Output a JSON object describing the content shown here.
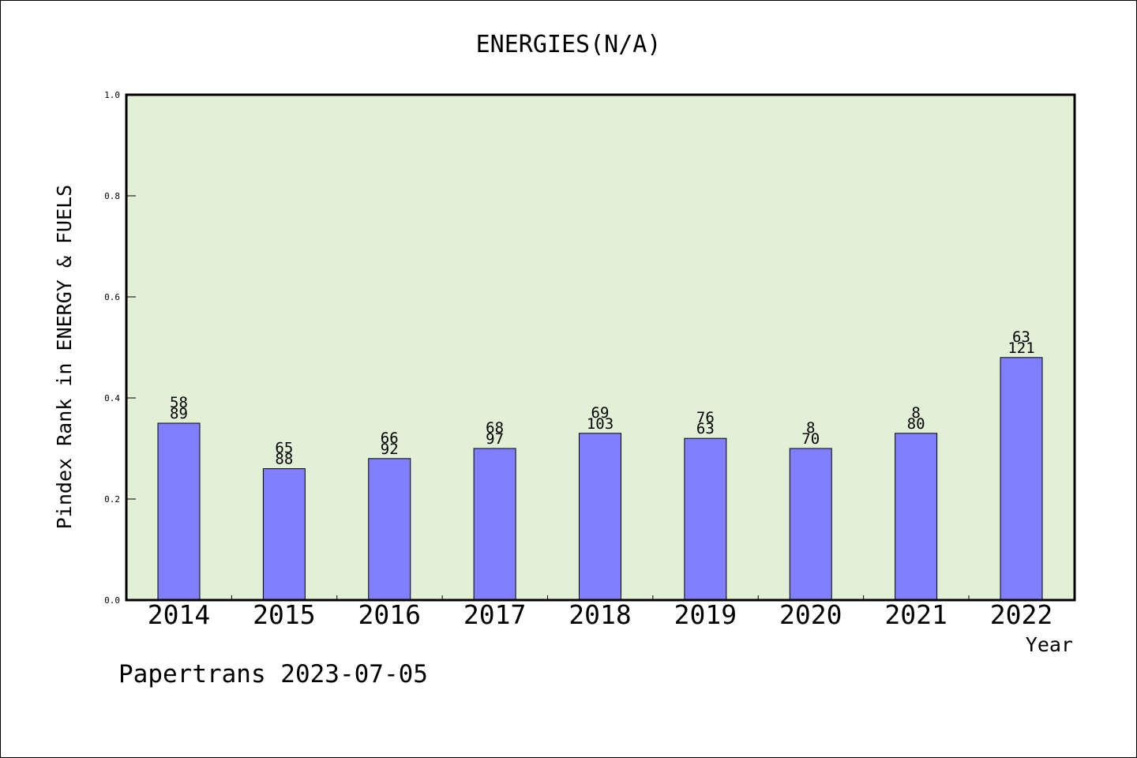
{
  "chart_data": {
    "type": "bar",
    "title": "ENERGIES(N/A)",
    "xlabel": "Year",
    "ylabel": "Pindex Rank in ENERGY & FUELS",
    "categories": [
      "2014",
      "2015",
      "2016",
      "2017",
      "2018",
      "2019",
      "2020",
      "2021",
      "2022"
    ],
    "values": [
      0.35,
      0.26,
      0.28,
      0.3,
      0.33,
      0.32,
      0.3,
      0.33,
      0.48
    ],
    "label_top": [
      "58",
      "65",
      "66",
      "68",
      "69",
      "76",
      "8",
      "8",
      "63"
    ],
    "label_bottom": [
      "89",
      "88",
      "92",
      "97",
      "103",
      "63",
      "70",
      "80",
      "121"
    ],
    "ylim": [
      0,
      1.0
    ],
    "yticks": [
      "0.0",
      "0.2",
      "0.4",
      "0.6",
      "0.8",
      "1.0"
    ],
    "grid": false,
    "colors": {
      "plot_background": "#e2f0d6",
      "bar": "#8080ff"
    }
  },
  "footer": {
    "source": "Papertrans 2023-07-05"
  }
}
